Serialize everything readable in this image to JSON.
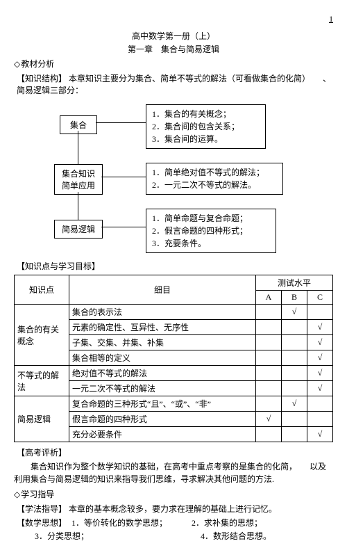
{
  "page_number": "1",
  "header": {
    "line1": "高中数学第一册（上）",
    "line2": "第一章　集合与简易逻辑"
  },
  "sections": {
    "materials": "教材分析",
    "study_guide": "学习指导"
  },
  "labels": {
    "structure": "【知识结构】",
    "points": "【知识点与学习目标】",
    "exam": "【高考评析】",
    "method": "【学法指导】",
    "thought": "【数学思想】"
  },
  "structure_intro": "本章知识主要分为集合、简单不等式的解法（可看做集合的化简）　　、简易逻辑三部分：",
  "diagram": {
    "node_set": "集合",
    "node_app": "集合知识\n简单应用",
    "node_logic": "简易逻辑",
    "box1": [
      "1．集合的有关概念；",
      "2．集合间的包含关系；",
      "3．集合间的运算。"
    ],
    "box2": [
      "1．简单绝对值不等式的解法；",
      "2．一元二次不等式的解法。"
    ],
    "box3": [
      "1．简单命题与复合命题；",
      "2．假言命题的四种形式；",
      "3．充要条件。"
    ]
  },
  "table": {
    "headers": {
      "c1": "知识点",
      "c2": "细目",
      "c3": "测试水平",
      "a": "A",
      "b": "B",
      "c": "C"
    },
    "groups": [
      {
        "label": "集合的有关\n概念",
        "rows": [
          {
            "item": "集合的表示法",
            "a": "",
            "b": "√",
            "c": ""
          },
          {
            "item": "元素的确定性、互异性、无序性",
            "a": "",
            "b": "",
            "c": "√"
          },
          {
            "item": "子集、交集、并集、补集",
            "a": "",
            "b": "",
            "c": "√"
          },
          {
            "item": "集合相等的定义",
            "a": "",
            "b": "",
            "c": "√"
          }
        ]
      },
      {
        "label": "不等式的解\n法",
        "rows": [
          {
            "item": "绝对值不等式的解法",
            "a": "",
            "b": "",
            "c": "√"
          },
          {
            "item": "一元二次不等式的解法",
            "a": "",
            "b": "",
            "c": "√"
          }
        ]
      },
      {
        "label": "简易逻辑",
        "rows": [
          {
            "item": "复合命题的三种形式“且”、“或”、“非”",
            "a": "",
            "b": "√",
            "c": ""
          },
          {
            "item": "假言命题的四种形式",
            "a": "√",
            "b": "",
            "c": ""
          },
          {
            "item": "充分必要条件",
            "a": "",
            "b": "",
            "c": "√"
          }
        ]
      }
    ]
  },
  "exam_text": "集合知识作为整个数学知识的基础，在高考中重点考察的是集合的化简，　　以及利用集合与简易逻辑的知识来指导我们思维，寻求解决其他问题的方法.",
  "method_text": "本章的基本概念较多，要力求在理解的基础上进行记忆。",
  "thoughts": {
    "r1c1": "1．等价转化的数学思想；",
    "r1c2": "2．求补集的思想；",
    "r2c1": "3．分类思想；",
    "r2c2": "4．数形结合思想。"
  }
}
